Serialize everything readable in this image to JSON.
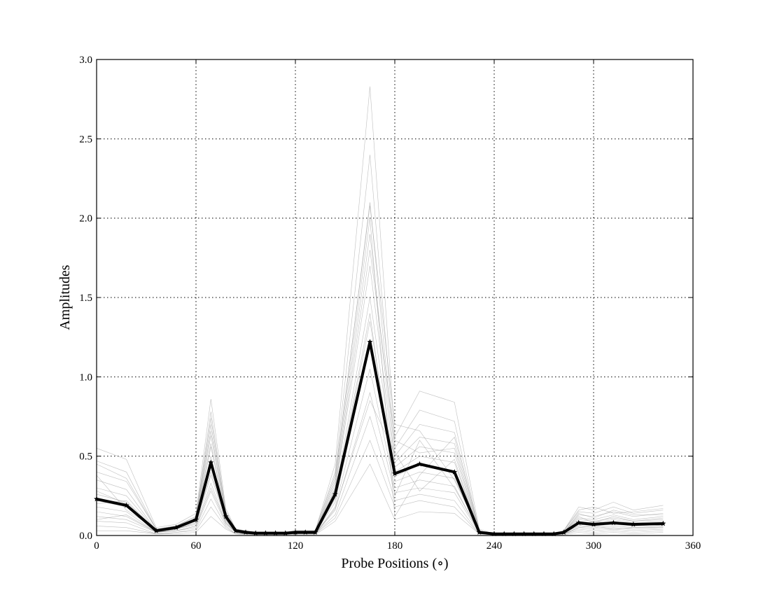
{
  "chart_data": {
    "type": "line",
    "title": "",
    "xlabel": "Probe Positions (∘)",
    "ylabel": "Amplitudes",
    "xlim": [
      0,
      360
    ],
    "ylim": [
      0,
      3.0
    ],
    "xticks": [
      0,
      60,
      120,
      180,
      240,
      300,
      360
    ],
    "yticks": [
      0.0,
      0.5,
      1.0,
      1.5,
      2.0,
      2.5,
      3.0
    ],
    "ytick_labels": [
      "0.0",
      "0.5",
      "1.0",
      "1.5",
      "2.0",
      "2.5",
      "3.0"
    ],
    "grid": true,
    "x": [
      0,
      18,
      36,
      48,
      60,
      69,
      78,
      84,
      90,
      96,
      102,
      108,
      114,
      120,
      126,
      132,
      144,
      165,
      180,
      195,
      216,
      231,
      240,
      246,
      252,
      258,
      264,
      270,
      276,
      282,
      291,
      300,
      312,
      324,
      342
    ],
    "series": [
      {
        "style": "mean",
        "color": "#000000",
        "values": [
          0.23,
          0.19,
          0.03,
          0.05,
          0.1,
          0.46,
          0.12,
          0.03,
          0.02,
          0.015,
          0.015,
          0.015,
          0.015,
          0.02,
          0.02,
          0.02,
          0.26,
          1.22,
          0.39,
          0.45,
          0.4,
          0.02,
          0.01,
          0.01,
          0.01,
          0.01,
          0.01,
          0.01,
          0.01,
          0.02,
          0.08,
          0.07,
          0.08,
          0.07,
          0.075
        ]
      },
      {
        "style": "trial",
        "color": "#8a8a8a",
        "values": [
          0.55,
          0.48,
          0.05,
          0.07,
          0.14,
          0.86,
          0.17,
          0.04,
          0.03,
          0.02,
          0.02,
          0.02,
          0.02,
          0.03,
          0.03,
          0.03,
          0.45,
          2.83,
          0.62,
          0.91,
          0.84,
          0.04,
          0.01,
          0.01,
          0.01,
          0.01,
          0.01,
          0.01,
          0.01,
          0.03,
          0.18,
          0.16,
          0.21,
          0.16,
          0.19
        ]
      },
      {
        "style": "trial",
        "color": "#8a8a8a",
        "values": [
          0.47,
          0.4,
          0.04,
          0.06,
          0.12,
          0.78,
          0.15,
          0.04,
          0.03,
          0.02,
          0.02,
          0.02,
          0.02,
          0.03,
          0.03,
          0.03,
          0.4,
          2.4,
          0.55,
          0.79,
          0.72,
          0.03,
          0.01,
          0.01,
          0.01,
          0.01,
          0.01,
          0.01,
          0.01,
          0.03,
          0.15,
          0.14,
          0.18,
          0.14,
          0.16
        ]
      },
      {
        "style": "trial",
        "color": "#8a8a8a",
        "values": [
          0.4,
          0.34,
          0.04,
          0.06,
          0.11,
          0.7,
          0.14,
          0.03,
          0.02,
          0.02,
          0.02,
          0.02,
          0.02,
          0.02,
          0.02,
          0.02,
          0.36,
          2.1,
          0.5,
          0.7,
          0.65,
          0.03,
          0.01,
          0.01,
          0.01,
          0.01,
          0.01,
          0.01,
          0.01,
          0.02,
          0.13,
          0.12,
          0.15,
          0.12,
          0.14
        ]
      },
      {
        "style": "trial",
        "color": "#8a8a8a",
        "values": [
          0.35,
          0.29,
          0.03,
          0.05,
          0.1,
          0.63,
          0.13,
          0.03,
          0.02,
          0.02,
          0.02,
          0.02,
          0.02,
          0.02,
          0.02,
          0.02,
          0.32,
          1.9,
          0.46,
          0.62,
          0.58,
          0.03,
          0.01,
          0.01,
          0.01,
          0.01,
          0.01,
          0.01,
          0.01,
          0.02,
          0.11,
          0.1,
          0.13,
          0.1,
          0.12
        ]
      },
      {
        "style": "trial",
        "color": "#8a8a8a",
        "values": [
          0.3,
          0.25,
          0.03,
          0.05,
          0.09,
          0.56,
          0.12,
          0.03,
          0.02,
          0.015,
          0.015,
          0.015,
          0.015,
          0.02,
          0.02,
          0.02,
          0.29,
          1.7,
          0.43,
          0.56,
          0.52,
          0.02,
          0.01,
          0.01,
          0.01,
          0.01,
          0.01,
          0.01,
          0.01,
          0.02,
          0.1,
          0.09,
          0.11,
          0.09,
          0.1
        ]
      },
      {
        "style": "trial",
        "color": "#8a8a8a",
        "values": [
          0.26,
          0.21,
          0.03,
          0.04,
          0.09,
          0.5,
          0.11,
          0.03,
          0.02,
          0.015,
          0.015,
          0.015,
          0.015,
          0.02,
          0.02,
          0.02,
          0.26,
          1.5,
          0.4,
          0.5,
          0.46,
          0.02,
          0.01,
          0.01,
          0.01,
          0.01,
          0.01,
          0.01,
          0.01,
          0.02,
          0.09,
          0.08,
          0.1,
          0.08,
          0.09
        ]
      },
      {
        "style": "trial",
        "color": "#8a8a8a",
        "values": [
          0.22,
          0.18,
          0.02,
          0.04,
          0.08,
          0.44,
          0.1,
          0.02,
          0.015,
          0.01,
          0.01,
          0.01,
          0.01,
          0.015,
          0.015,
          0.015,
          0.23,
          1.35,
          0.37,
          0.45,
          0.4,
          0.02,
          0.01,
          0.01,
          0.01,
          0.01,
          0.01,
          0.01,
          0.01,
          0.02,
          0.08,
          0.07,
          0.08,
          0.07,
          0.08
        ]
      },
      {
        "style": "trial",
        "color": "#8a8a8a",
        "values": [
          0.18,
          0.15,
          0.02,
          0.04,
          0.07,
          0.38,
          0.09,
          0.02,
          0.015,
          0.01,
          0.01,
          0.01,
          0.01,
          0.015,
          0.015,
          0.015,
          0.21,
          1.2,
          0.34,
          0.4,
          0.36,
          0.02,
          0.01,
          0.01,
          0.01,
          0.01,
          0.01,
          0.01,
          0.01,
          0.015,
          0.07,
          0.06,
          0.07,
          0.06,
          0.07
        ]
      },
      {
        "style": "trial",
        "color": "#8a8a8a",
        "values": [
          0.15,
          0.12,
          0.02,
          0.03,
          0.06,
          0.33,
          0.08,
          0.02,
          0.01,
          0.01,
          0.01,
          0.01,
          0.01,
          0.01,
          0.01,
          0.01,
          0.18,
          1.05,
          0.3,
          0.35,
          0.31,
          0.015,
          0.005,
          0.005,
          0.005,
          0.005,
          0.005,
          0.005,
          0.005,
          0.015,
          0.06,
          0.05,
          0.06,
          0.05,
          0.06
        ]
      },
      {
        "style": "trial",
        "color": "#8a8a8a",
        "values": [
          0.12,
          0.1,
          0.02,
          0.03,
          0.05,
          0.28,
          0.07,
          0.02,
          0.01,
          0.01,
          0.01,
          0.01,
          0.01,
          0.01,
          0.01,
          0.01,
          0.16,
          0.9,
          0.27,
          0.3,
          0.27,
          0.015,
          0.005,
          0.005,
          0.005,
          0.005,
          0.005,
          0.005,
          0.005,
          0.01,
          0.05,
          0.04,
          0.05,
          0.04,
          0.05
        ]
      },
      {
        "style": "trial",
        "color": "#8a8a8a",
        "values": [
          0.09,
          0.08,
          0.01,
          0.02,
          0.04,
          0.23,
          0.06,
          0.01,
          0.01,
          0.01,
          0.01,
          0.01,
          0.01,
          0.01,
          0.01,
          0.01,
          0.13,
          0.75,
          0.22,
          0.26,
          0.22,
          0.01,
          0.005,
          0.005,
          0.005,
          0.005,
          0.005,
          0.005,
          0.005,
          0.01,
          0.04,
          0.03,
          0.04,
          0.03,
          0.04
        ]
      },
      {
        "style": "trial",
        "color": "#8a8a8a",
        "values": [
          0.06,
          0.05,
          0.01,
          0.02,
          0.03,
          0.18,
          0.05,
          0.01,
          0.01,
          0.005,
          0.005,
          0.005,
          0.005,
          0.01,
          0.01,
          0.01,
          0.11,
          0.6,
          0.18,
          0.22,
          0.18,
          0.01,
          0.005,
          0.005,
          0.005,
          0.005,
          0.005,
          0.005,
          0.005,
          0.01,
          0.03,
          0.02,
          0.03,
          0.02,
          0.03
        ]
      },
      {
        "style": "trial",
        "color": "#8a8a8a",
        "values": [
          0.03,
          0.03,
          0.01,
          0.01,
          0.02,
          0.12,
          0.04,
          0.01,
          0.005,
          0.005,
          0.005,
          0.005,
          0.005,
          0.005,
          0.005,
          0.005,
          0.09,
          0.45,
          0.1,
          0.15,
          0.14,
          0.01,
          0.005,
          0.005,
          0.005,
          0.005,
          0.005,
          0.005,
          0.005,
          0.005,
          0.02,
          0.01,
          0.02,
          0.01,
          0.02
        ]
      },
      {
        "style": "trial",
        "color": "#8a8a8a",
        "values": [
          0.28,
          0.2,
          0.03,
          0.05,
          0.1,
          0.58,
          0.11,
          0.03,
          0.02,
          0.015,
          0.015,
          0.015,
          0.015,
          0.02,
          0.02,
          0.02,
          0.3,
          1.8,
          0.6,
          0.52,
          0.55,
          0.02,
          0.01,
          0.01,
          0.01,
          0.01,
          0.01,
          0.01,
          0.01,
          0.02,
          0.12,
          0.08,
          0.12,
          0.09,
          0.11
        ]
      },
      {
        "style": "trial",
        "color": "#8a8a8a",
        "values": [
          0.2,
          0.22,
          0.03,
          0.04,
          0.08,
          0.4,
          0.1,
          0.02,
          0.015,
          0.01,
          0.01,
          0.01,
          0.01,
          0.015,
          0.015,
          0.015,
          0.24,
          1.4,
          0.25,
          0.6,
          0.3,
          0.02,
          0.01,
          0.01,
          0.01,
          0.01,
          0.01,
          0.01,
          0.01,
          0.02,
          0.06,
          0.09,
          0.07,
          0.08,
          0.06
        ]
      },
      {
        "style": "trial",
        "color": "#8a8a8a",
        "values": [
          0.38,
          0.16,
          0.04,
          0.05,
          0.11,
          0.66,
          0.13,
          0.03,
          0.02,
          0.015,
          0.015,
          0.015,
          0.015,
          0.02,
          0.02,
          0.02,
          0.34,
          2.0,
          0.12,
          0.38,
          0.62,
          0.03,
          0.01,
          0.01,
          0.01,
          0.01,
          0.01,
          0.01,
          0.01,
          0.02,
          0.14,
          0.11,
          0.16,
          0.13,
          0.13
        ]
      },
      {
        "style": "trial",
        "color": "#8a8a8a",
        "values": [
          0.1,
          0.13,
          0.02,
          0.03,
          0.06,
          0.3,
          0.08,
          0.02,
          0.01,
          0.01,
          0.01,
          0.01,
          0.01,
          0.01,
          0.01,
          0.01,
          0.17,
          0.85,
          0.52,
          0.28,
          0.48,
          0.015,
          0.005,
          0.005,
          0.005,
          0.005,
          0.005,
          0.005,
          0.005,
          0.01,
          0.05,
          0.06,
          0.04,
          0.05,
          0.05
        ]
      },
      {
        "style": "trial",
        "color": "#8a8a8a",
        "values": [
          0.45,
          0.36,
          0.04,
          0.06,
          0.12,
          0.74,
          0.15,
          0.04,
          0.03,
          0.02,
          0.02,
          0.02,
          0.02,
          0.03,
          0.03,
          0.03,
          0.38,
          2.08,
          0.7,
          0.66,
          0.35,
          0.03,
          0.01,
          0.01,
          0.01,
          0.01,
          0.01,
          0.01,
          0.01,
          0.03,
          0.16,
          0.18,
          0.14,
          0.15,
          0.17
        ]
      }
    ]
  }
}
